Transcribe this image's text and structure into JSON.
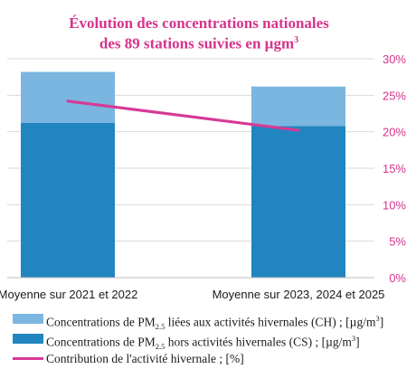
{
  "title": {
    "line1": "Évolution des concentrations nationales",
    "line2_prefix": "des 89 stations suivies en µgm",
    "line2_sup": "3"
  },
  "colors": {
    "title": "#d6338c",
    "hivernal": "#7bb6e0",
    "hors_hivernal": "#2185c0",
    "contribution": "#d63a96",
    "right_axis": "#d6338c",
    "grid": "#d9d9d9"
  },
  "chart_data": {
    "type": "bar",
    "stacked": true,
    "categories": [
      "Moyenne sur 2021 et 2022",
      "Moyenne sur 2023, 2024 et 2025"
    ],
    "series": [
      {
        "name": "Concentrations de PM2.5 hors activités hivernales (CS) ; [µg/m3]",
        "kind": "bar",
        "values": [
          21.2,
          20.8
        ]
      },
      {
        "name": "Concentrations de PM2.5 liées aux activités hivernales (CH) ; [µg/m3]",
        "kind": "bar",
        "values": [
          7.0,
          5.4
        ]
      },
      {
        "name": "Contribution de l'activité hivernale ; [%]",
        "kind": "line",
        "axis": "right",
        "values": [
          24.2,
          20.2
        ]
      }
    ],
    "y_right": {
      "ticks": [
        "0%",
        "5%",
        "10%",
        "15%",
        "20%",
        "25%",
        "30%"
      ],
      "range": [
        0,
        30
      ]
    },
    "y_left_range": [
      0,
      30
    ],
    "grid": true,
    "legend_position": "bottom"
  },
  "legend": [
    {
      "before": "Concentrations de PM",
      "sub": "2.5",
      "after": " liées aux activités hivernales (CH) ; [µg/m",
      "sup": "3",
      "end": "]",
      "style": "bar",
      "color": "#7bb6e0"
    },
    {
      "before": "Concentrations de PM",
      "sub": "2.5",
      "after": " hors activités hivernales (CS) ; [µg/m",
      "sup": "3",
      "end": "]",
      "style": "bar",
      "color": "#2185c0"
    },
    {
      "before": "Contribution de l'activité hivernale ; [%]",
      "sub": "",
      "after": "",
      "sup": "",
      "end": "",
      "style": "line",
      "color": "#d63a96"
    }
  ]
}
